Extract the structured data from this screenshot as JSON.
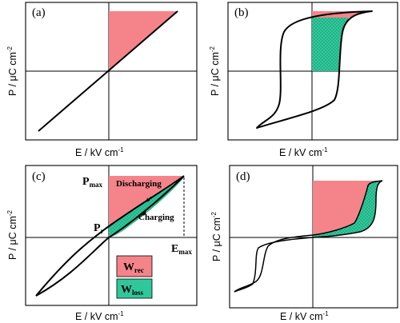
{
  "panels": [
    {
      "id": "a",
      "label": "(a)",
      "xlabel": "E / kV cm",
      "xsup": "-1",
      "ylabel": "P / μC cm",
      "ysup": "-2"
    },
    {
      "id": "b",
      "label": "(b)",
      "xlabel": "E / kV cm",
      "xsup": "-1",
      "ylabel": "P / μC cm",
      "ysup": "-2"
    },
    {
      "id": "c",
      "label": "(c)",
      "xlabel": "E / kV cm",
      "xsup": "-1",
      "ylabel": "P / μC cm",
      "ysup": "-2"
    },
    {
      "id": "d",
      "label": "(d)",
      "xlabel": "E / kV cm",
      "xsup": "-1",
      "ylabel": "P / μC cm",
      "ysup": "-2"
    }
  ],
  "annotations": {
    "pmax": "P",
    "pmax_sub": "max",
    "pr": "P",
    "pr_sub": "r",
    "emax": "E",
    "emax_sub": "max",
    "discharging": "Discharging",
    "charging": "Charging"
  },
  "legend": {
    "wrec": "W",
    "wrec_sub": "rec",
    "wloss": "W",
    "wloss_sub": "loss"
  },
  "colors": {
    "recoverable": "#f4848a",
    "loss": "#30c89a"
  }
}
